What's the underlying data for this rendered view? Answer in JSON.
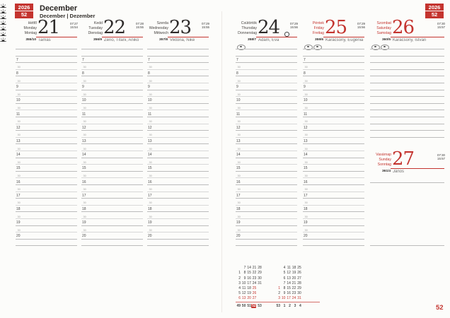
{
  "branding": {
    "year": "2026",
    "week": "52"
  },
  "header": {
    "title": "December",
    "subtitle": "December | Dezember"
  },
  "page_number": "52",
  "schedule": {
    "hours": [
      "7",
      "8",
      "9",
      "10",
      "11",
      "12",
      "13",
      "14",
      "15",
      "16",
      "17",
      "18",
      "19",
      "20"
    ],
    "half_hour_label": "30"
  },
  "days": [
    {
      "hu": "Hétfő",
      "en": "Monday",
      "de": "Montag",
      "date": "21",
      "day_of_year": "355/10",
      "name_day": "Tamás",
      "sunrise": "07:27",
      "sunset": "15:54",
      "red": false,
      "moon": false,
      "badges": 0
    },
    {
      "hu": "Kedd",
      "en": "Tuesday",
      "de": "Dienstag",
      "date": "22",
      "day_of_year": "356/9",
      "name_day": "Zénó, Tifani, Anikó",
      "sunrise": "07:28",
      "sunset": "15:55",
      "red": false,
      "moon": false,
      "badges": 0
    },
    {
      "hu": "Szerda",
      "en": "Wednesday",
      "de": "Mittwoch",
      "date": "23",
      "day_of_year": "357/8",
      "name_day": "Viktória, Niké",
      "sunrise": "07:29",
      "sunset": "15:55",
      "red": false,
      "moon": false,
      "badges": 0
    },
    {
      "hu": "Csütörtök",
      "en": "Thursday",
      "de": "Donnerstag",
      "date": "24",
      "day_of_year": "358/7",
      "name_day": "Ádám, Éva",
      "sunrise": "07:29",
      "sunset": "15:56",
      "red": false,
      "moon": true,
      "badges": 1
    },
    {
      "hu": "Péntek",
      "en": "Friday",
      "de": "Freitag",
      "date": "25",
      "day_of_year": "359/6",
      "name_day": "Karácsony, Eugénia",
      "sunrise": "07:29",
      "sunset": "15:56",
      "red": true,
      "moon": false,
      "badges": 2
    },
    {
      "hu": "Szombat",
      "en": "Saturday",
      "de": "Samstag",
      "date": "26",
      "day_of_year": "360/5",
      "name_day": "Karácsony, István",
      "sunrise": "07:30",
      "sunset": "15:57",
      "red": true,
      "moon": false,
      "badges": 2
    },
    {
      "hu": "Vasárnap",
      "en": "Sunday",
      "de": "Sonntag",
      "date": "27",
      "day_of_year": "361/4",
      "name_day": "János",
      "sunrise": "07:30",
      "sunset": "15:57",
      "red": true,
      "moon": false,
      "badges": 0
    }
  ],
  "mini_calendars": [
    {
      "rows": [
        [
          "",
          "7",
          "14",
          "21",
          "28"
        ],
        [
          "1",
          "8",
          "15",
          "22",
          "29"
        ],
        [
          "2",
          "9",
          "16",
          "23",
          "30"
        ],
        [
          "3",
          "10",
          "17",
          "24",
          "31"
        ],
        [
          "4",
          "11",
          "18",
          "25",
          ""
        ],
        [
          "5",
          "12",
          "19",
          "26",
          ""
        ],
        [
          "6",
          "13",
          "20",
          "27",
          ""
        ]
      ],
      "red_dates": [
        "6",
        "13",
        "20",
        "25",
        "26",
        "27"
      ],
      "weeks": [
        "49",
        "50",
        "51",
        "52",
        "53"
      ],
      "current_week": "52"
    },
    {
      "rows": [
        [
          "",
          "4",
          "11",
          "18",
          "25"
        ],
        [
          "",
          "5",
          "12",
          "19",
          "26"
        ],
        [
          "",
          "6",
          "13",
          "20",
          "27"
        ],
        [
          "",
          "7",
          "14",
          "21",
          "28"
        ],
        [
          "1",
          "8",
          "15",
          "22",
          "29"
        ],
        [
          "2",
          "9",
          "16",
          "23",
          "30"
        ],
        [
          "3",
          "10",
          "17",
          "24",
          "31"
        ]
      ],
      "red_dates": [
        "1",
        "3",
        "10",
        "17",
        "24",
        "31"
      ],
      "weeks": [
        "53",
        "1",
        "2",
        "3",
        "4"
      ],
      "current_week": ""
    }
  ],
  "colors": {
    "accent": "#c4342f"
  }
}
